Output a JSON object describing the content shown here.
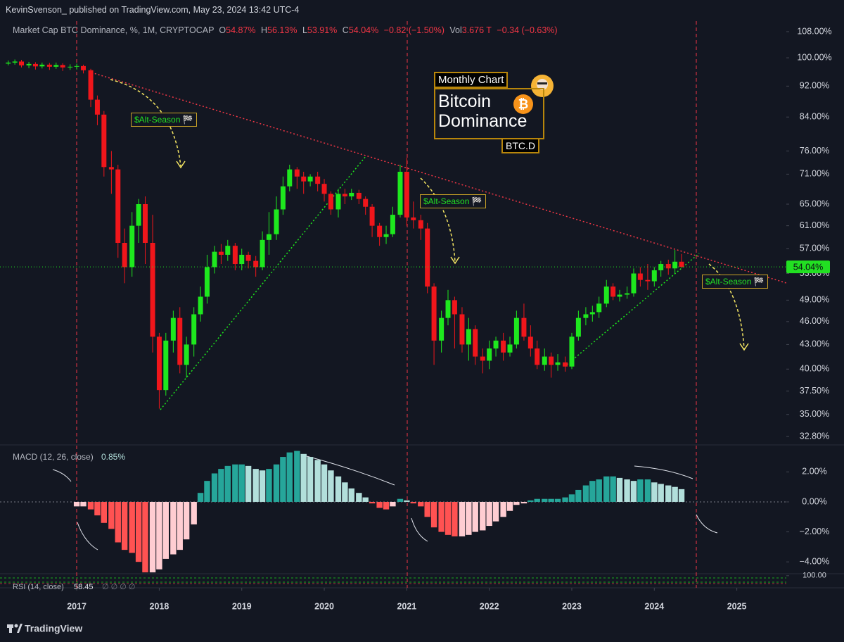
{
  "header": {
    "publisher": "KevinSvenson_ published on TradingView.com, May 23, 2024 13:42 UTC-4"
  },
  "chart_data": [
    {
      "type": "candlestick",
      "title": "Market Cap BTC Dominance, %, 1M, CRYPTOCAP",
      "legend": {
        "keys": [
          "O",
          "H",
          "L",
          "C"
        ],
        "value_labels": [
          "54.87%",
          "56.13%",
          "53.91%",
          "54.04%"
        ],
        "change": "−0.82 (−1.50%)",
        "vol_key": "Vol",
        "vol": "3.676 T",
        "vol_change": "−0.34 (−0.63%)"
      },
      "x": [
        2016.17,
        2016.25,
        2016.33,
        2016.42,
        2016.5,
        2016.58,
        2016.67,
        2016.75,
        2016.83,
        2016.92,
        2017.0,
        2017.08,
        2017.17,
        2017.25,
        2017.33,
        2017.42,
        2017.5,
        2017.58,
        2017.67,
        2017.75,
        2017.83,
        2017.92,
        2018.0,
        2018.08,
        2018.17,
        2018.25,
        2018.33,
        2018.42,
        2018.5,
        2018.58,
        2018.67,
        2018.75,
        2018.83,
        2018.92,
        2019.0,
        2019.08,
        2019.17,
        2019.25,
        2019.33,
        2019.42,
        2019.5,
        2019.58,
        2019.67,
        2019.75,
        2019.83,
        2019.92,
        2020.0,
        2020.08,
        2020.17,
        2020.25,
        2020.33,
        2020.42,
        2020.5,
        2020.58,
        2020.67,
        2020.75,
        2020.83,
        2020.92,
        2021.0,
        2021.08,
        2021.17,
        2021.25,
        2021.33,
        2021.42,
        2021.5,
        2021.58,
        2021.67,
        2021.75,
        2021.83,
        2021.92,
        2022.0,
        2022.08,
        2022.17,
        2022.25,
        2022.33,
        2022.42,
        2022.5,
        2022.58,
        2022.67,
        2022.75,
        2022.83,
        2022.92,
        2023.0,
        2023.08,
        2023.17,
        2023.25,
        2023.33,
        2023.42,
        2023.5,
        2023.58,
        2023.67,
        2023.75,
        2023.83,
        2023.92,
        2024.0,
        2024.08,
        2024.17,
        2024.25,
        2024.33
      ],
      "open": [
        98.3,
        98.6,
        98.9,
        97.8,
        98.2,
        97.5,
        98.0,
        97.4,
        97.9,
        97.2,
        97.4,
        97.6,
        96.4,
        88.4,
        84.6,
        72.5,
        72.0,
        58.0,
        54.0,
        61.0,
        65.0,
        58.0,
        44.0,
        37.6,
        43.5,
        46.5,
        40.5,
        43.0,
        47.0,
        49.5,
        54.0,
        56.5,
        56.0,
        57.5,
        54.5,
        56.0,
        55.0,
        54.0,
        58.5,
        59.5,
        64.0,
        68.5,
        72.0,
        70.5,
        69.5,
        70.5,
        69.0,
        67.0,
        64.0,
        67.0,
        66.5,
        67.2,
        66.0,
        64.5,
        61.0,
        59.0,
        59.5,
        63.0,
        71.5,
        62.5,
        62.0,
        60.5,
        51.0,
        43.5,
        46.5,
        49.0,
        47.0,
        43.0,
        45.0,
        41.5,
        41.0,
        42.5,
        43.5,
        42.0,
        43.0,
        46.5,
        44.0,
        42.5,
        40.5,
        41.5,
        40.5,
        40.8,
        40.3,
        44.0,
        46.5,
        47.0,
        47.3,
        48.5,
        51.0,
        49.5,
        49.8,
        50.0,
        53.0,
        52.0,
        51.8,
        53.5,
        54.5,
        53.8,
        54.87
      ],
      "high": [
        99.2,
        99.5,
        99.4,
        98.8,
        98.7,
        98.6,
        98.5,
        98.6,
        98.4,
        98.1,
        98.3,
        98.0,
        96.8,
        89.5,
        85.5,
        76.0,
        73.0,
        60.5,
        63.5,
        66.0,
        66.5,
        63.0,
        44.5,
        44.5,
        47.5,
        48.0,
        44.0,
        48.0,
        51.0,
        56.0,
        57.5,
        57.8,
        58.5,
        58.0,
        57.0,
        56.5,
        55.8,
        60.0,
        63.5,
        66.5,
        70.5,
        73.0,
        72.5,
        71.5,
        71.0,
        71.5,
        70.0,
        67.5,
        68.0,
        68.0,
        68.0,
        67.8,
        66.5,
        65.0,
        61.5,
        61.0,
        64.5,
        73.0,
        74.5,
        65.5,
        63.0,
        61.5,
        51.5,
        47.5,
        50.5,
        49.5,
        48.0,
        46.5,
        45.5,
        42.5,
        43.5,
        44.0,
        44.5,
        44.0,
        47.5,
        48.5,
        45.5,
        43.5,
        42.5,
        42.0,
        41.8,
        41.5,
        44.5,
        47.5,
        48.0,
        48.2,
        49.5,
        52.0,
        51.5,
        50.5,
        51.0,
        53.8,
        54.0,
        54.5,
        54.0,
        55.0,
        55.2,
        56.8,
        56.13
      ],
      "low": [
        97.8,
        98.0,
        97.2,
        97.0,
        96.6,
        96.9,
        96.5,
        96.8,
        96.2,
        96.5,
        96.6,
        95.5,
        86.5,
        82.0,
        70.5,
        67.0,
        55.5,
        51.5,
        52.5,
        58.0,
        54.5,
        42.0,
        35.6,
        37.0,
        42.0,
        39.5,
        39.0,
        41.5,
        46.0,
        48.5,
        53.0,
        54.5,
        55.0,
        53.5,
        53.5,
        53.8,
        52.5,
        53.5,
        56.0,
        58.5,
        63.0,
        67.5,
        68.0,
        67.0,
        68.5,
        67.5,
        65.5,
        63.0,
        62.5,
        65.0,
        65.8,
        65.0,
        63.0,
        59.0,
        57.5,
        57.8,
        59.0,
        62.5,
        61.0,
        60.5,
        58.5,
        50.0,
        40.5,
        42.0,
        45.5,
        42.5,
        42.0,
        41.0,
        40.5,
        39.5,
        40.0,
        41.5,
        41.0,
        41.5,
        42.5,
        43.5,
        41.5,
        40.0,
        39.8,
        39.0,
        39.8,
        39.7,
        40.0,
        43.5,
        45.5,
        46.0,
        46.5,
        48.0,
        49.0,
        48.8,
        49.2,
        49.5,
        51.0,
        50.5,
        51.0,
        52.5,
        52.8,
        53.0,
        53.91
      ],
      "close": [
        98.6,
        98.9,
        97.8,
        98.2,
        97.5,
        98.0,
        97.4,
        97.9,
        97.2,
        97.4,
        97.6,
        96.4,
        88.4,
        84.6,
        72.5,
        72.0,
        58.0,
        54.0,
        61.0,
        65.0,
        58.0,
        44.0,
        37.6,
        43.5,
        46.5,
        40.5,
        43.0,
        47.0,
        49.5,
        54.0,
        56.5,
        56.0,
        57.5,
        54.5,
        56.0,
        55.0,
        54.0,
        58.5,
        59.5,
        64.0,
        68.5,
        72.0,
        70.5,
        69.5,
        70.5,
        69.0,
        67.0,
        64.0,
        67.0,
        66.5,
        67.2,
        66.0,
        64.5,
        61.0,
        59.0,
        59.5,
        63.0,
        71.5,
        62.5,
        62.0,
        60.5,
        51.0,
        43.5,
        46.5,
        49.0,
        47.0,
        43.0,
        45.0,
        41.5,
        41.0,
        42.5,
        43.5,
        42.0,
        43.0,
        46.5,
        44.0,
        42.5,
        40.5,
        41.5,
        40.5,
        40.8,
        40.3,
        44.0,
        46.5,
        47.0,
        47.3,
        48.5,
        51.0,
        49.5,
        49.8,
        50.0,
        53.0,
        52.0,
        51.8,
        53.5,
        54.5,
        53.8,
        54.87,
        54.04
      ],
      "up_color": "#1ee81e",
      "down_color": "#f0161b",
      "xlim": [
        2016.07,
        2025.6
      ],
      "xticks": [
        2017,
        2018,
        2019,
        2020,
        2021,
        2022,
        2023,
        2024,
        2025
      ],
      "ylim": [
        32,
        111.4
      ],
      "log_scale": true,
      "grid": false,
      "yticks": [
        {
          "value": 108,
          "label": "108.00%"
        },
        {
          "value": 100,
          "label": "100.00%"
        },
        {
          "value": 92,
          "label": "92.00%"
        },
        {
          "value": 84,
          "label": "84.00%"
        },
        {
          "value": 76,
          "label": "76.00%"
        },
        {
          "value": 71,
          "label": "71.00%"
        },
        {
          "value": 65,
          "label": "65.00%"
        },
        {
          "value": 61,
          "label": "61.00%"
        },
        {
          "value": 57,
          "label": "57.00%"
        },
        {
          "value": 53,
          "label": "53.00%"
        },
        {
          "value": 49,
          "label": "49.00%"
        },
        {
          "value": 46,
          "label": "46.00%"
        },
        {
          "value": 43,
          "label": "43.00%"
        },
        {
          "value": 40,
          "label": "40.00%"
        },
        {
          "value": 37.5,
          "label": "37.50%"
        },
        {
          "value": 35,
          "label": "35.00%"
        },
        {
          "value": 32.8,
          "label": "32.80%"
        }
      ],
      "last_price": {
        "value": 54.04,
        "label": "54.04%"
      },
      "annotations": [
        "$Alt-Season 🏁",
        "$Alt-Season 🏁",
        "$Alt-Season 🏁"
      ],
      "info_box": {
        "tag": "Monthly Chart",
        "title_lines": [
          "Bitcoin",
          "Dominance"
        ],
        "symbol": "BTC.D"
      }
    },
    {
      "type": "histogram",
      "title": "MACD (12, 26, close)",
      "last_value_label": "0.85%",
      "values": [
        null,
        null,
        null,
        null,
        null,
        null,
        null,
        null,
        null,
        null,
        -0.3,
        -0.3,
        -0.5,
        -0.9,
        -1.4,
        -1.8,
        -2.7,
        -3.2,
        -3.4,
        -4.0,
        -4.7,
        -4.7,
        -4.5,
        -3.8,
        -3.5,
        -3.2,
        -2.5,
        -1.5,
        0.6,
        1.4,
        1.9,
        2.2,
        2.4,
        2.5,
        2.5,
        2.4,
        2.2,
        2.1,
        2.2,
        2.5,
        3.0,
        3.3,
        3.4,
        3.2,
        3.0,
        2.8,
        2.5,
        2.1,
        1.7,
        1.3,
        0.9,
        0.6,
        0.3,
        -0.1,
        -0.4,
        -0.5,
        -0.3,
        0.2,
        0.1,
        -0.1,
        -0.3,
        -1.0,
        -1.7,
        -2.0,
        -2.2,
        -2.3,
        -2.3,
        -2.2,
        -2.0,
        -1.9,
        -1.6,
        -1.3,
        -1.0,
        -0.6,
        -0.2,
        -0.1,
        0.1,
        0.2,
        0.2,
        0.2,
        0.2,
        0.3,
        0.5,
        0.8,
        1.1,
        1.4,
        1.5,
        1.7,
        1.7,
        1.6,
        1.5,
        1.4,
        1.5,
        1.5,
        1.3,
        1.2,
        1.1,
        1.0,
        0.85
      ],
      "colors": {
        "positive_rising": "#26a69a",
        "positive_falling": "#b2dfdb",
        "negative_falling": "#ff5252",
        "negative_rising": "#ffcdd2"
      },
      "ylim": [
        -4.79,
        3.52
      ],
      "yticks": [
        {
          "value": 2,
          "label": "2.00%"
        },
        {
          "value": 0,
          "label": "0.00%"
        },
        {
          "value": -2,
          "label": "−2.00%"
        },
        {
          "value": -4,
          "label": "−4.00%"
        }
      ]
    },
    {
      "type": "rsi",
      "title": "RSI (14, close)",
      "last_value": 58.45,
      "flags": "∅ ∅ ∅ ∅",
      "ylim": [
        0,
        120
      ],
      "yticks": [
        {
          "value": 100,
          "label": "100.00"
        }
      ]
    }
  ],
  "footer": {
    "brand": "TradingView"
  }
}
